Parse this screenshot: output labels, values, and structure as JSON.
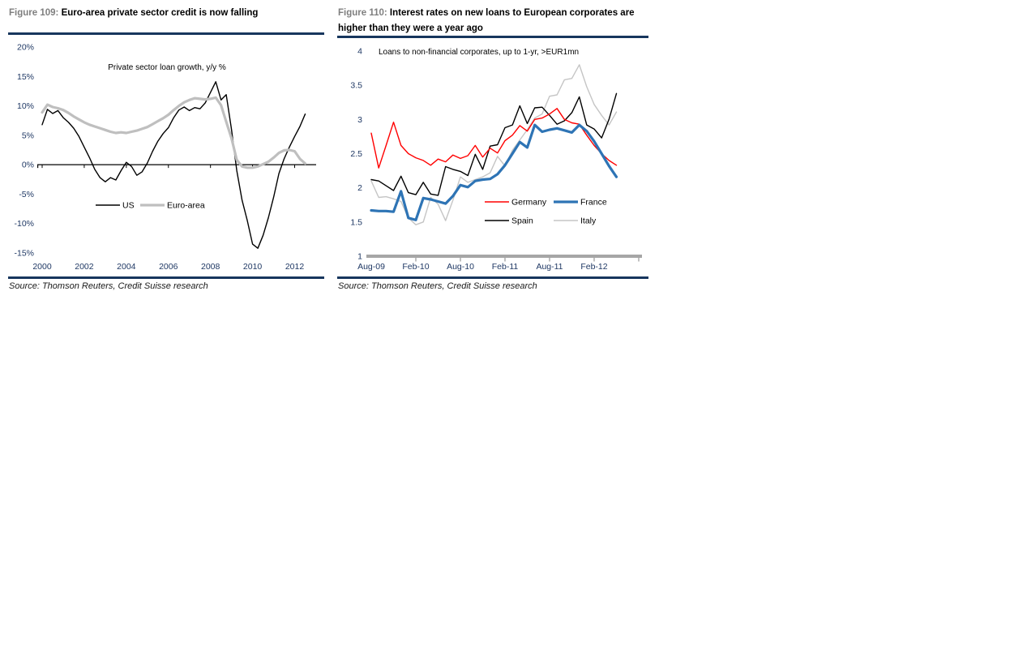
{
  "accent_color": "#17365d",
  "axis_label_color": "#1f3864",
  "figures": [
    {
      "label": "Figure 109:",
      "title": "Euro-area private sector credit is now falling",
      "source": "Source: Thomson Reuters, Credit Suisse research"
    },
    {
      "label": "Figure 110:",
      "title": "Interest rates on new loans to European corporates are higher than they were a year ago",
      "source": "Source: Thomson Reuters, Credit Suisse research"
    }
  ],
  "chart_data": [
    {
      "type": "line",
      "title": "Private sector loan growth, y/y %",
      "grid": false,
      "legend_position": "inside-bottom-left",
      "x_axis_at_zero": true,
      "ylim": [
        -15,
        20
      ],
      "yticks": [
        20,
        15,
        10,
        5,
        0,
        -5,
        -10,
        -15
      ],
      "ytick_labels": [
        "20%",
        "15%",
        "10%",
        "5%",
        "0%",
        "-5%",
        "-10%",
        "-15%"
      ],
      "xticks": [
        2000,
        2002,
        2004,
        2006,
        2008,
        2010,
        2012
      ],
      "xtick_labels": [
        "2000",
        "2002",
        "2004",
        "2006",
        "2008",
        "2010",
        "2012"
      ],
      "x": [
        2000.0,
        2000.25,
        2000.5,
        2000.75,
        2001.0,
        2001.25,
        2001.5,
        2001.75,
        2002.0,
        2002.25,
        2002.5,
        2002.75,
        2003.0,
        2003.25,
        2003.5,
        2003.75,
        2004.0,
        2004.25,
        2004.5,
        2004.75,
        2005.0,
        2005.25,
        2005.5,
        2005.75,
        2006.0,
        2006.25,
        2006.5,
        2006.75,
        2007.0,
        2007.25,
        2007.5,
        2007.75,
        2008.0,
        2008.25,
        2008.5,
        2008.75,
        2009.0,
        2009.25,
        2009.5,
        2009.75,
        2010.0,
        2010.25,
        2010.5,
        2010.75,
        2011.0,
        2011.25,
        2011.5,
        2011.75,
        2012.0,
        2012.25,
        2012.5
      ],
      "series": [
        {
          "name": "US",
          "color": "#000000",
          "width": 1.4,
          "values": [
            6.8,
            9.4,
            8.7,
            9.2,
            8.0,
            7.2,
            6.2,
            4.8,
            3.0,
            1.2,
            -0.8,
            -2.2,
            -2.9,
            -2.2,
            -2.6,
            -1.0,
            0.4,
            -0.3,
            -1.8,
            -1.2,
            0.3,
            2.3,
            4.0,
            5.3,
            6.3,
            8.0,
            9.3,
            9.8,
            9.2,
            9.7,
            9.5,
            10.5,
            12.3,
            14.1,
            11.0,
            11.9,
            6.0,
            -1.0,
            -6.0,
            -9.5,
            -13.5,
            -14.2,
            -12.0,
            -9.0,
            -5.5,
            -1.5,
            1.0,
            3.0,
            4.8,
            6.5,
            8.6
          ]
        },
        {
          "name": "Euro-area",
          "color": "#bfbfbf",
          "width": 3.2,
          "values": [
            8.9,
            10.2,
            9.8,
            9.6,
            9.3,
            8.8,
            8.2,
            7.7,
            7.2,
            6.8,
            6.5,
            6.2,
            5.9,
            5.6,
            5.4,
            5.5,
            5.4,
            5.6,
            5.8,
            6.1,
            6.4,
            6.9,
            7.4,
            7.9,
            8.5,
            9.3,
            10.0,
            10.6,
            11.0,
            11.3,
            11.2,
            11.1,
            11.2,
            11.4,
            10.1,
            7.3,
            4.5,
            0.8,
            -0.3,
            -0.5,
            -0.5,
            -0.3,
            0.1,
            0.5,
            1.2,
            2.0,
            2.45,
            2.5,
            2.3,
            1.0,
            0.2
          ]
        }
      ]
    },
    {
      "type": "line",
      "title": "Loans to non-financial corporates, up to 1-yr, >EUR1mn",
      "grid": false,
      "legend_position": "inside-bottom-right",
      "ylim": [
        1,
        4
      ],
      "yticks": [
        4,
        3.5,
        3,
        2.5,
        2,
        1.5,
        1
      ],
      "ytick_labels": [
        "4",
        "3.5",
        "3",
        "2.5",
        "2",
        "1.5",
        "1"
      ],
      "xtick_indices": [
        0,
        6,
        12,
        18,
        24,
        30
      ],
      "xtick_labels": [
        "Aug-09",
        "Feb-10",
        "Aug-10",
        "Feb-11",
        "Aug-11",
        "Feb-12"
      ],
      "x_labels": [
        "Aug-09",
        "Sep-09",
        "Oct-09",
        "Nov-09",
        "Dec-09",
        "Jan-10",
        "Feb-10",
        "Mar-10",
        "Apr-10",
        "May-10",
        "Jun-10",
        "Jul-10",
        "Aug-10",
        "Sep-10",
        "Oct-10",
        "Nov-10",
        "Dec-10",
        "Jan-11",
        "Feb-11",
        "Mar-11",
        "Apr-11",
        "May-11",
        "Jun-11",
        "Jul-11",
        "Aug-11",
        "Sep-11",
        "Oct-11",
        "Nov-11",
        "Dec-11",
        "Jan-12",
        "Feb-12",
        "Mar-12",
        "Apr-12",
        "May-12"
      ],
      "series": [
        {
          "name": "Germany",
          "color": "#ff0000",
          "width": 1.4,
          "values": [
            2.8,
            2.29,
            2.62,
            2.96,
            2.62,
            2.5,
            2.44,
            2.4,
            2.33,
            2.42,
            2.38,
            2.48,
            2.43,
            2.47,
            2.62,
            2.45,
            2.58,
            2.51,
            2.69,
            2.77,
            2.91,
            2.83,
            3.0,
            3.02,
            3.08,
            3.16,
            3.0,
            2.95,
            2.93,
            2.77,
            2.62,
            2.5,
            2.4,
            2.33
          ]
        },
        {
          "name": "France",
          "color": "#2e74b5",
          "width": 3.2,
          "values": [
            1.67,
            1.66,
            1.66,
            1.65,
            1.95,
            1.56,
            1.53,
            1.85,
            1.83,
            1.8,
            1.77,
            1.88,
            2.04,
            2.01,
            2.1,
            2.12,
            2.13,
            2.2,
            2.33,
            2.5,
            2.67,
            2.59,
            2.92,
            2.82,
            2.85,
            2.87,
            2.84,
            2.81,
            2.92,
            2.83,
            2.68,
            2.5,
            2.32,
            2.16
          ]
        },
        {
          "name": "Spain",
          "color": "#000000",
          "width": 1.4,
          "values": [
            2.12,
            2.1,
            2.03,
            1.96,
            2.17,
            1.93,
            1.9,
            2.08,
            1.91,
            1.89,
            2.31,
            2.27,
            2.24,
            2.18,
            2.49,
            2.27,
            2.61,
            2.63,
            2.88,
            2.92,
            3.2,
            2.94,
            3.17,
            3.18,
            3.06,
            2.93,
            2.98,
            3.1,
            3.33,
            2.92,
            2.86,
            2.73,
            3.0,
            3.38
          ]
        },
        {
          "name": "Italy",
          "color": "#c5c5c5",
          "width": 1.4,
          "values": [
            2.1,
            1.86,
            1.87,
            1.84,
            1.8,
            1.56,
            1.46,
            1.5,
            1.86,
            1.76,
            1.52,
            1.82,
            2.16,
            2.08,
            2.12,
            2.16,
            2.22,
            2.46,
            2.32,
            2.55,
            2.7,
            2.85,
            3.02,
            3.08,
            3.34,
            3.36,
            3.58,
            3.6,
            3.8,
            3.48,
            3.22,
            3.06,
            2.92,
            3.11
          ]
        }
      ]
    }
  ]
}
